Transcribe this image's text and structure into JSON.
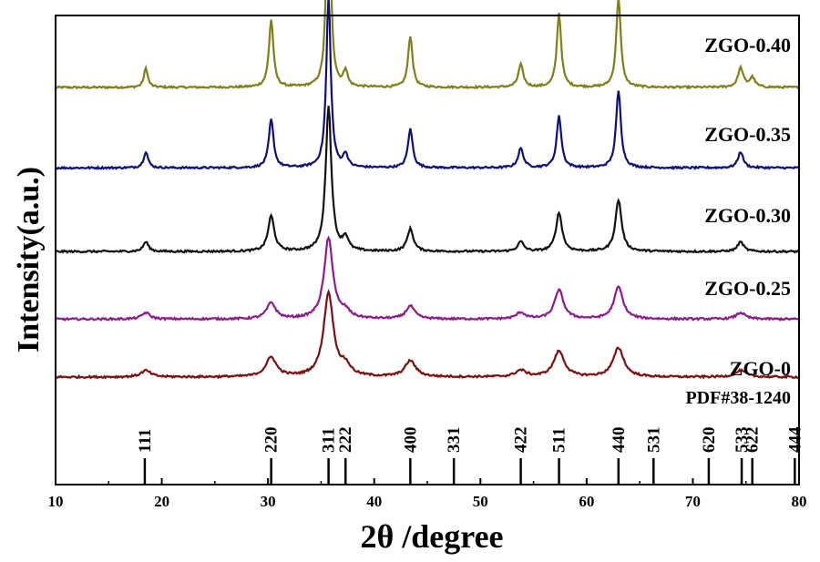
{
  "chart_data": {
    "type": "line",
    "xlabel": "2θ /degree",
    "ylabel": "Intensity(a.u.)",
    "xlim": [
      10,
      80
    ],
    "x_ticks": [
      10,
      20,
      30,
      40,
      50,
      60,
      70,
      80
    ],
    "grid": false,
    "legend": "none",
    "series": [
      {
        "name": "ZGO-0.40",
        "color": "#808018",
        "baseline": 1.0,
        "peaks": [
          {
            "x": 18.5,
            "h": 0.06,
            "w": 0.22
          },
          {
            "x": 30.3,
            "h": 0.21,
            "w": 0.25
          },
          {
            "x": 35.7,
            "h": 0.73,
            "w": 0.22
          },
          {
            "x": 37.3,
            "h": 0.05,
            "w": 0.22
          },
          {
            "x": 43.4,
            "h": 0.16,
            "w": 0.25
          },
          {
            "x": 53.8,
            "h": 0.07,
            "w": 0.28
          },
          {
            "x": 57.4,
            "h": 0.23,
            "w": 0.25
          },
          {
            "x": 63.0,
            "h": 0.28,
            "w": 0.25
          },
          {
            "x": 74.5,
            "h": 0.06,
            "w": 0.3
          },
          {
            "x": 75.6,
            "h": 0.03,
            "w": 0.3
          }
        ]
      },
      {
        "name": "ZGO-0.35",
        "color": "#0f0f7a",
        "baseline": 0.75,
        "peaks": [
          {
            "x": 18.5,
            "h": 0.05,
            "w": 0.25
          },
          {
            "x": 30.3,
            "h": 0.15,
            "w": 0.27
          },
          {
            "x": 35.7,
            "h": 0.53,
            "w": 0.25
          },
          {
            "x": 37.3,
            "h": 0.04,
            "w": 0.25
          },
          {
            "x": 43.4,
            "h": 0.12,
            "w": 0.27
          },
          {
            "x": 53.8,
            "h": 0.06,
            "w": 0.3
          },
          {
            "x": 57.4,
            "h": 0.16,
            "w": 0.27
          },
          {
            "x": 63.0,
            "h": 0.24,
            "w": 0.27
          },
          {
            "x": 74.5,
            "h": 0.05,
            "w": 0.3
          }
        ]
      },
      {
        "name": "ZGO-0.30",
        "color": "#111111",
        "baseline": 0.49,
        "peaks": [
          {
            "x": 18.5,
            "h": 0.03,
            "w": 0.3
          },
          {
            "x": 30.3,
            "h": 0.11,
            "w": 0.35
          },
          {
            "x": 35.7,
            "h": 0.45,
            "w": 0.32
          },
          {
            "x": 37.3,
            "h": 0.04,
            "w": 0.32
          },
          {
            "x": 43.4,
            "h": 0.07,
            "w": 0.35
          },
          {
            "x": 53.8,
            "h": 0.03,
            "w": 0.35
          },
          {
            "x": 57.4,
            "h": 0.12,
            "w": 0.35
          },
          {
            "x": 63.0,
            "h": 0.16,
            "w": 0.35
          },
          {
            "x": 74.5,
            "h": 0.03,
            "w": 0.35
          }
        ]
      },
      {
        "name": "ZGO-0.25",
        "color": "#8e1a8e",
        "baseline": 0.28,
        "peaks": [
          {
            "x": 18.5,
            "h": 0.02,
            "w": 0.45
          },
          {
            "x": 30.3,
            "h": 0.05,
            "w": 0.5
          },
          {
            "x": 35.7,
            "h": 0.25,
            "w": 0.5
          },
          {
            "x": 37.3,
            "h": 0.02,
            "w": 0.5
          },
          {
            "x": 43.4,
            "h": 0.04,
            "w": 0.5
          },
          {
            "x": 53.8,
            "h": 0.02,
            "w": 0.5
          },
          {
            "x": 57.4,
            "h": 0.09,
            "w": 0.5
          },
          {
            "x": 63.0,
            "h": 0.1,
            "w": 0.5
          },
          {
            "x": 74.5,
            "h": 0.02,
            "w": 0.5
          }
        ]
      },
      {
        "name": "ZGO-0",
        "color": "#7a1010",
        "baseline": 0.1,
        "peaks": [
          {
            "x": 18.5,
            "h": 0.02,
            "w": 0.55
          },
          {
            "x": 30.3,
            "h": 0.06,
            "w": 0.6
          },
          {
            "x": 35.7,
            "h": 0.26,
            "w": 0.55
          },
          {
            "x": 37.3,
            "h": 0.03,
            "w": 0.55
          },
          {
            "x": 43.4,
            "h": 0.05,
            "w": 0.6
          },
          {
            "x": 53.8,
            "h": 0.02,
            "w": 0.6
          },
          {
            "x": 57.4,
            "h": 0.08,
            "w": 0.6
          },
          {
            "x": 63.0,
            "h": 0.09,
            "w": 0.6
          },
          {
            "x": 74.5,
            "h": 0.02,
            "w": 0.6
          }
        ]
      }
    ],
    "reference": {
      "name": "PDF#38-1240",
      "lines": [
        {
          "x": 18.4,
          "hkl": "111"
        },
        {
          "x": 30.3,
          "hkl": "220"
        },
        {
          "x": 35.7,
          "hkl": "311"
        },
        {
          "x": 37.3,
          "hkl": "222"
        },
        {
          "x": 43.4,
          "hkl": "400"
        },
        {
          "x": 47.5,
          "hkl": "331"
        },
        {
          "x": 53.8,
          "hkl": "422"
        },
        {
          "x": 57.4,
          "hkl": "511"
        },
        {
          "x": 63.0,
          "hkl": "440"
        },
        {
          "x": 66.3,
          "hkl": "531"
        },
        {
          "x": 71.5,
          "hkl": "620"
        },
        {
          "x": 74.6,
          "hkl": "533"
        },
        {
          "x": 75.6,
          "hkl": "622"
        },
        {
          "x": 79.6,
          "hkl": "444"
        }
      ]
    }
  }
}
